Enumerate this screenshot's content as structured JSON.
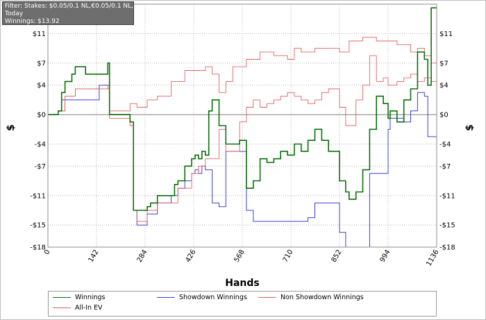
{
  "filter_box": {
    "line1": "Filter: Stakes: $0.05/0.1 NL,€0.05/0.1 NL,",
    "line2": "Today",
    "line3": "Winnings: $13.92"
  },
  "colors": {
    "winnings": "#0a6e0a",
    "showdown": "#3b3bd6",
    "non_showdown": "#e06060",
    "all_in_ev": "#e06060",
    "zero_line": "#7f7f7f",
    "grid": "#b4b4b4"
  },
  "chart_data": {
    "type": "line",
    "title": "",
    "xlabel": "Hands",
    "ylabel": "$",
    "xlim": [
      0,
      1136
    ],
    "ylim": [
      -18,
      15
    ],
    "x_ticks": [
      0,
      142,
      284,
      426,
      568,
      710,
      852,
      994,
      1136
    ],
    "x_tick_labels": [
      "0",
      "142",
      "284",
      "426",
      "568",
      "710",
      "852",
      "994",
      "1136"
    ],
    "y_ticks": [
      11,
      7,
      4,
      0,
      -4,
      -7,
      -11,
      -15,
      -18
    ],
    "y_tick_labels": [
      "$11",
      "$7",
      "$4",
      "$0",
      "-$4",
      "-$7",
      "-$11",
      "-$15",
      "-$18"
    ],
    "grid": true,
    "series": [
      {
        "name": "Winnings",
        "x": [
          0,
          30,
          40,
          50,
          70,
          80,
          110,
          150,
          175,
          180,
          240,
          250,
          260,
          290,
          300,
          320,
          370,
          380,
          400,
          420,
          430,
          440,
          450,
          460,
          470,
          480,
          500,
          520,
          540,
          560,
          580,
          600,
          620,
          640,
          660,
          680,
          700,
          720,
          740,
          760,
          780,
          800,
          820,
          852,
          870,
          880,
          900,
          920,
          940,
          960,
          980,
          994,
          1000,
          1020,
          1040,
          1060,
          1080,
          1100,
          1110,
          1120,
          1136
        ],
        "y": [
          0,
          0.5,
          3,
          4.5,
          5.5,
          6.5,
          5.5,
          5.5,
          7,
          0,
          -1,
          -13,
          -13,
          -12.5,
          -12,
          -11,
          -9.5,
          -9,
          -7,
          -6,
          -5.5,
          -6,
          -5,
          -5.5,
          0.5,
          2,
          -1.5,
          -4,
          -4,
          -3.5,
          -10,
          -9,
          -6,
          -6.5,
          -6,
          -5,
          -5.5,
          -4,
          -5,
          -3.5,
          -2,
          -3.5,
          -5,
          -9,
          -10.5,
          -11.5,
          -10.5,
          -7.5,
          -2,
          2.5,
          1.5,
          -0.5,
          0.5,
          -1,
          2,
          3.5,
          8.5,
          7.5,
          4,
          14.5,
          14.5
        ]
      },
      {
        "name": "Showdown Winnings",
        "x": [
          0,
          30,
          40,
          80,
          150,
          180,
          240,
          250,
          260,
          290,
          320,
          360,
          380,
          400,
          420,
          430,
          440,
          450,
          460,
          480,
          500,
          520,
          540,
          560,
          580,
          600,
          640,
          700,
          720,
          740,
          760,
          780,
          800,
          820,
          852,
          870,
          900,
          920,
          940,
          960,
          994,
          1000,
          1040,
          1060,
          1080,
          1100,
          1110,
          1136
        ],
        "y": [
          0,
          0.5,
          2,
          2,
          4,
          0,
          -1,
          -13,
          -15,
          -13.5,
          -12,
          -11,
          -10,
          -9,
          -8,
          -7.5,
          -8,
          -7,
          -7.5,
          -12,
          -12.5,
          -5,
          -5,
          -5,
          -13,
          -14.5,
          -14.5,
          -14.5,
          -14.5,
          -14.5,
          -14,
          -12,
          -12,
          -12,
          -16,
          -18,
          -18,
          -18,
          -8,
          -8,
          -2,
          -0.5,
          -1,
          0.5,
          3,
          2.5,
          -3,
          -4
        ]
      },
      {
        "name": "Non Showdown Winnings",
        "x": [
          0,
          30,
          50,
          80,
          110,
          150,
          175,
          180,
          240,
          260,
          290,
          320,
          360,
          400,
          420,
          460,
          480,
          500,
          520,
          540,
          580,
          620,
          660,
          700,
          720,
          740,
          780,
          820,
          852,
          880,
          920,
          960,
          994,
          1020,
          1060,
          1080,
          1100,
          1120,
          1136
        ],
        "y": [
          0,
          0.5,
          2.5,
          3.5,
          3.5,
          3.5,
          4,
          0.5,
          1.5,
          1,
          2,
          2.5,
          4.5,
          6,
          6,
          6.5,
          5.5,
          3,
          4.5,
          6.5,
          7.5,
          8.5,
          8,
          7.5,
          9,
          8.5,
          9,
          9,
          8.5,
          10,
          10.5,
          10,
          10,
          9.5,
          8.5,
          9,
          8,
          7,
          6.5
        ]
      },
      {
        "name": "All-In EV",
        "x": [
          0,
          30,
          50,
          80,
          150,
          180,
          240,
          250,
          260,
          290,
          320,
          380,
          420,
          440,
          460,
          480,
          500,
          520,
          540,
          560,
          580,
          600,
          620,
          640,
          660,
          680,
          700,
          720,
          740,
          760,
          780,
          800,
          820,
          852,
          870,
          900,
          920,
          940,
          960,
          980,
          994,
          1020,
          1040,
          1060,
          1080,
          1100,
          1120,
          1136
        ],
        "y": [
          0,
          0.5,
          2.5,
          3.5,
          3.5,
          -0.5,
          -1.5,
          -13,
          -14.5,
          -13,
          -12,
          -10,
          -8,
          -7,
          -6,
          -6,
          -2,
          -5,
          -5,
          -1,
          1,
          2,
          1,
          1.5,
          2,
          2.5,
          3,
          2.5,
          2,
          1.5,
          2,
          3,
          3.5,
          1,
          -1.5,
          2,
          4,
          8,
          4.5,
          5,
          4,
          4.5,
          5,
          5.5,
          4.5,
          5,
          4.5,
          -4
        ]
      }
    ],
    "legend": {
      "placement": "bottom",
      "entries": [
        "Winnings",
        "Showdown Winnings",
        "Non Showdown Winnings",
        "All-In EV"
      ]
    }
  }
}
